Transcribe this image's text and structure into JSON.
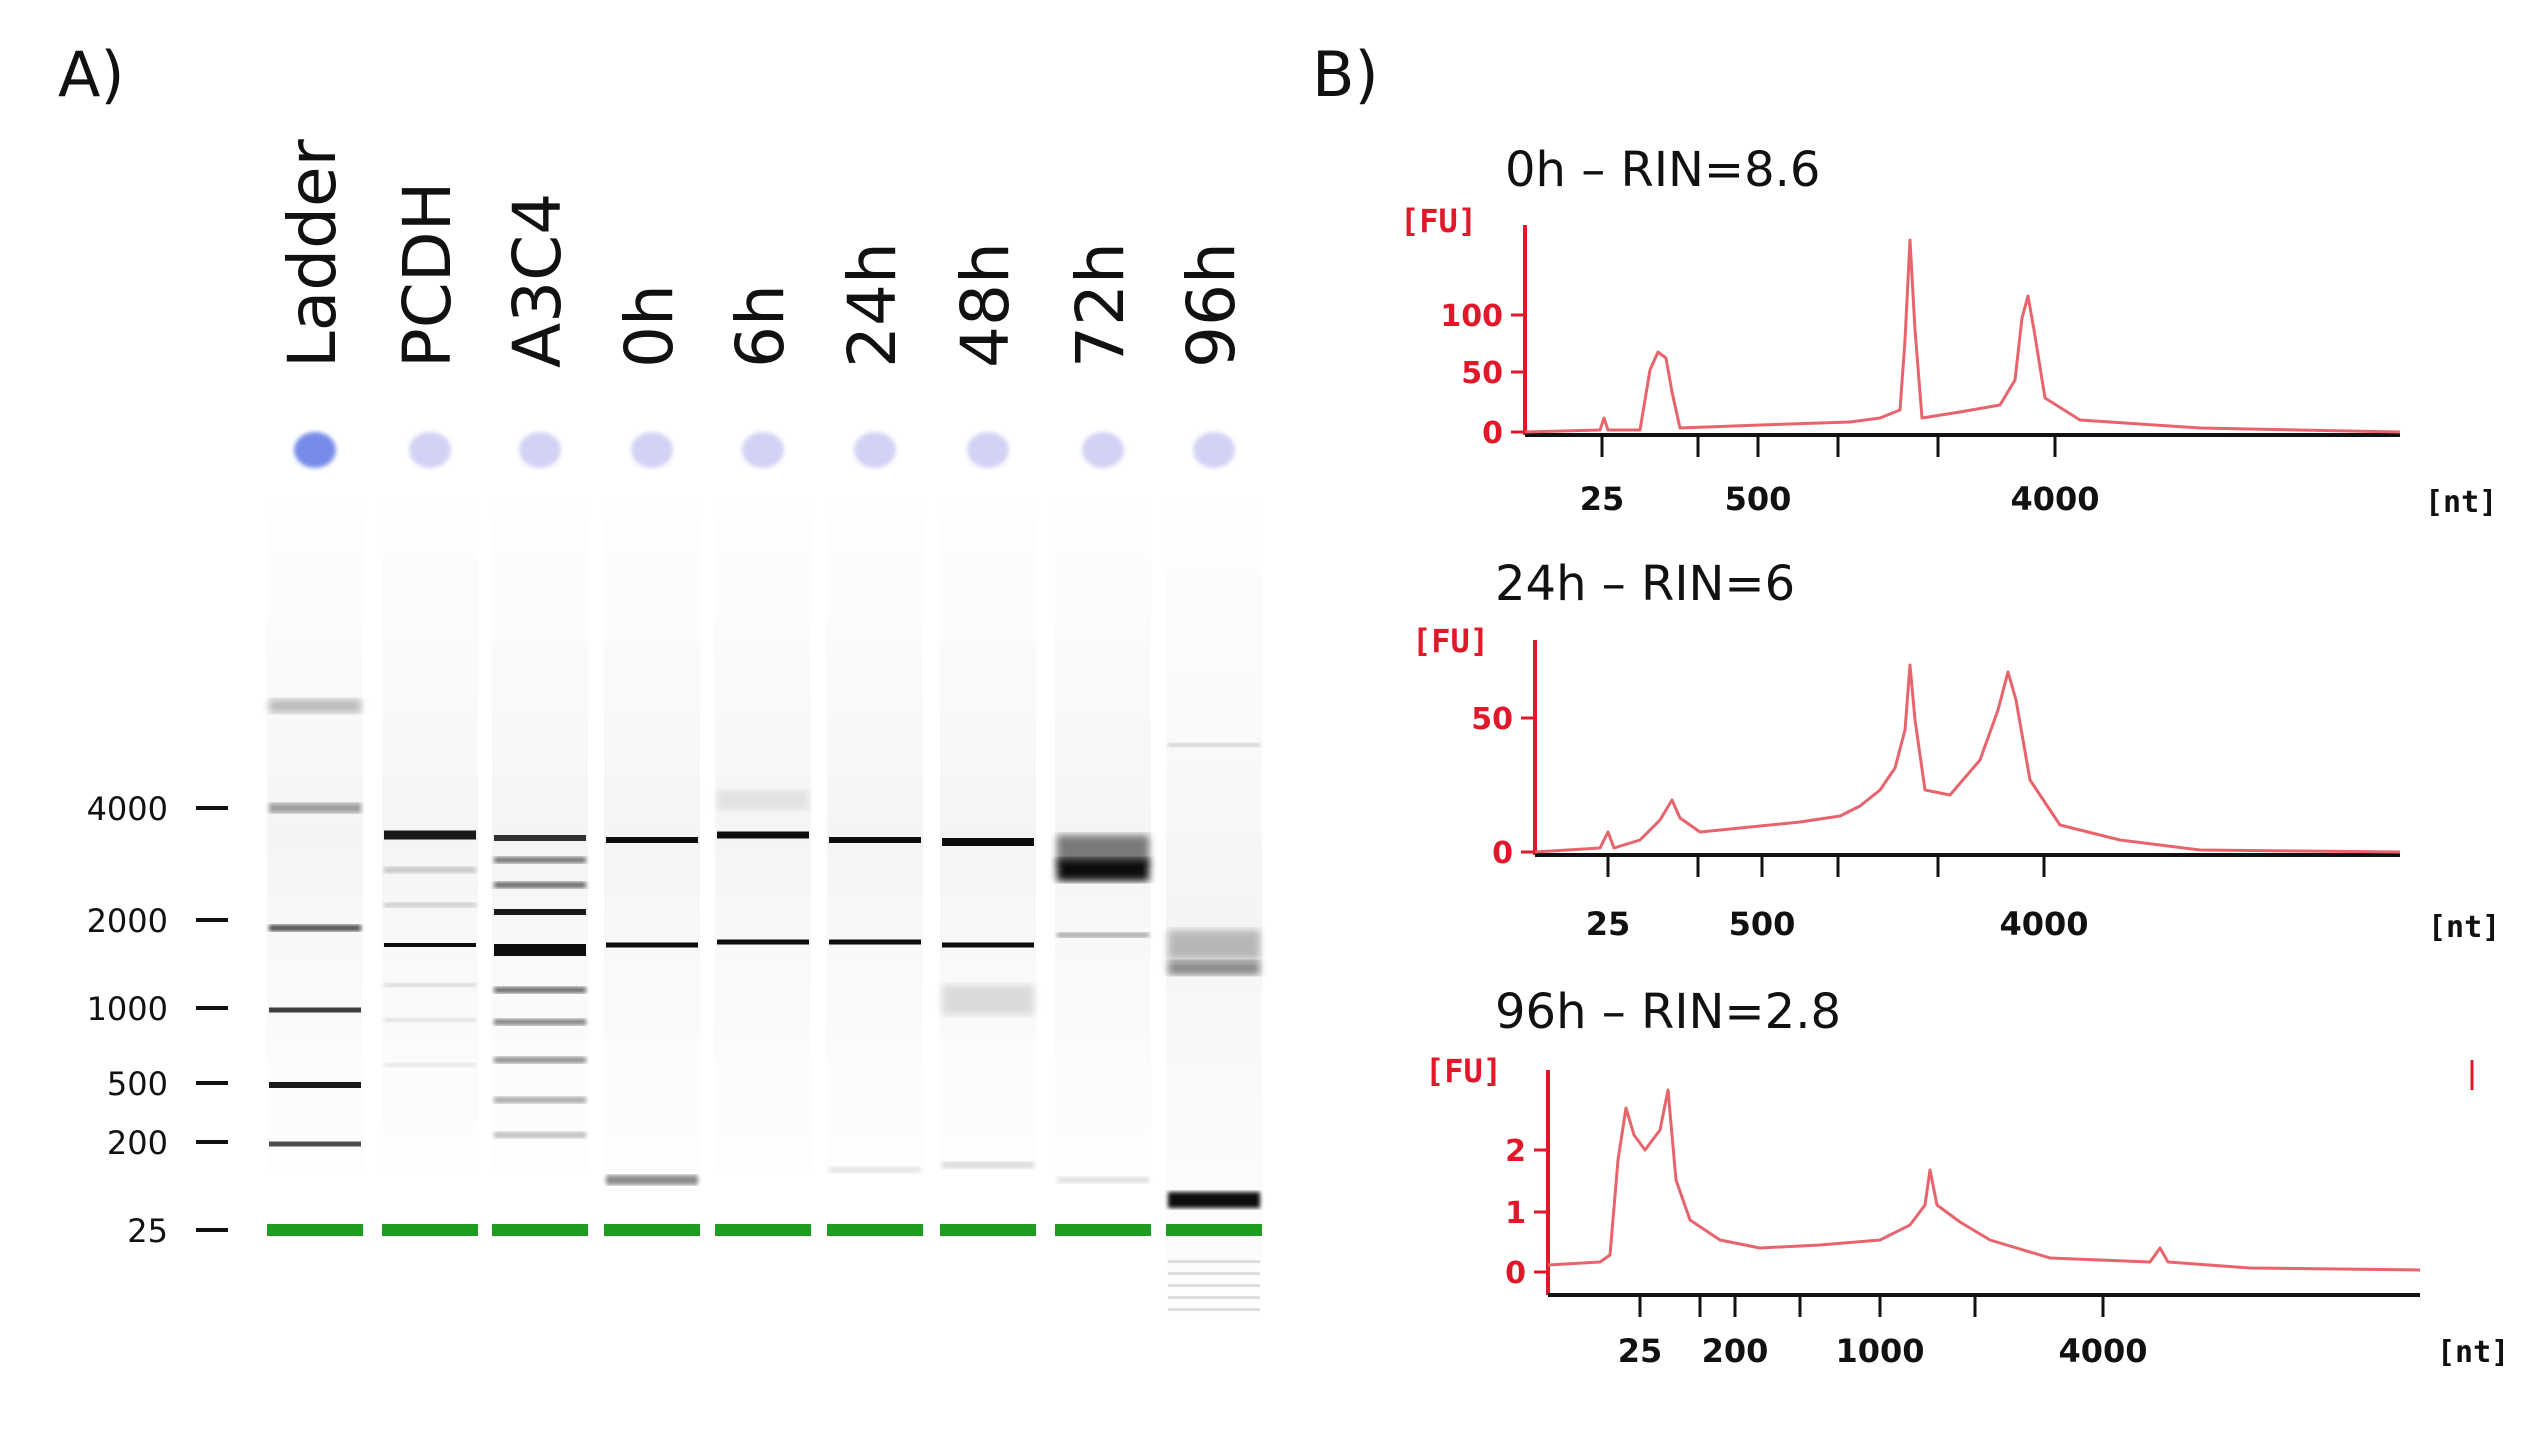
{
  "panel_a": {
    "label": "A)",
    "lanes": [
      "Ladder",
      "PCDH",
      "A3C4",
      "0h",
      "6h",
      "24h",
      "48h",
      "72h",
      "96h"
    ],
    "size_markers": [
      "4000",
      "2000",
      "1000",
      "500",
      "200",
      "25"
    ]
  },
  "panel_b": {
    "label": "B)"
  },
  "chart_data": [
    {
      "type": "line",
      "title": "0h – RIN=8.6",
      "ylabel": "[FU]",
      "xlabel": "[nt]",
      "x_ticks": [
        "25",
        "500",
        "4000"
      ],
      "y_ticks": [
        "0",
        "50",
        "100"
      ],
      "ylim": [
        0,
        140
      ],
      "color": "#e8646c",
      "peaks": [
        {
          "x": "25",
          "value": 8
        },
        {
          "x": "~60",
          "value": 62
        },
        {
          "x": "~1900 (18S)",
          "value": 150
        },
        {
          "x": "~3800 (28S)",
          "value": 112
        }
      ]
    },
    {
      "type": "line",
      "title": "24h – RIN=6",
      "ylabel": "[FU]",
      "xlabel": "[nt]",
      "x_ticks": [
        "25",
        "500",
        "4000"
      ],
      "y_ticks": [
        "0",
        "50"
      ],
      "ylim": [
        0,
        80
      ],
      "color": "#e8646c",
      "peaks": [
        {
          "x": "25",
          "value": 12
        },
        {
          "x": "~100",
          "value": 20
        },
        {
          "x": "~1900 (18S)",
          "value": 73
        },
        {
          "x": "~3800 (28S)",
          "value": 72
        }
      ]
    },
    {
      "type": "line",
      "title": "96h – RIN=2.8",
      "ylabel": "[FU]",
      "xlabel": "[nt]",
      "x_ticks": [
        "25",
        "200",
        "1000",
        "4000"
      ],
      "y_ticks": [
        "0",
        "1",
        "2"
      ],
      "ylim": [
        0,
        3
      ],
      "color": "#e8646c",
      "peaks": [
        {
          "x": "25",
          "value": 2.7
        },
        {
          "x": "~60",
          "value": 2.9
        },
        {
          "x": "~1500",
          "value": 1.6
        }
      ]
    }
  ],
  "colors": {
    "trace": "#e8646c",
    "axis_label": "#e0182a",
    "lower_marker": "#1e9e1e",
    "well": "#c9c6f2",
    "well_ladder": "#6f86e8"
  }
}
